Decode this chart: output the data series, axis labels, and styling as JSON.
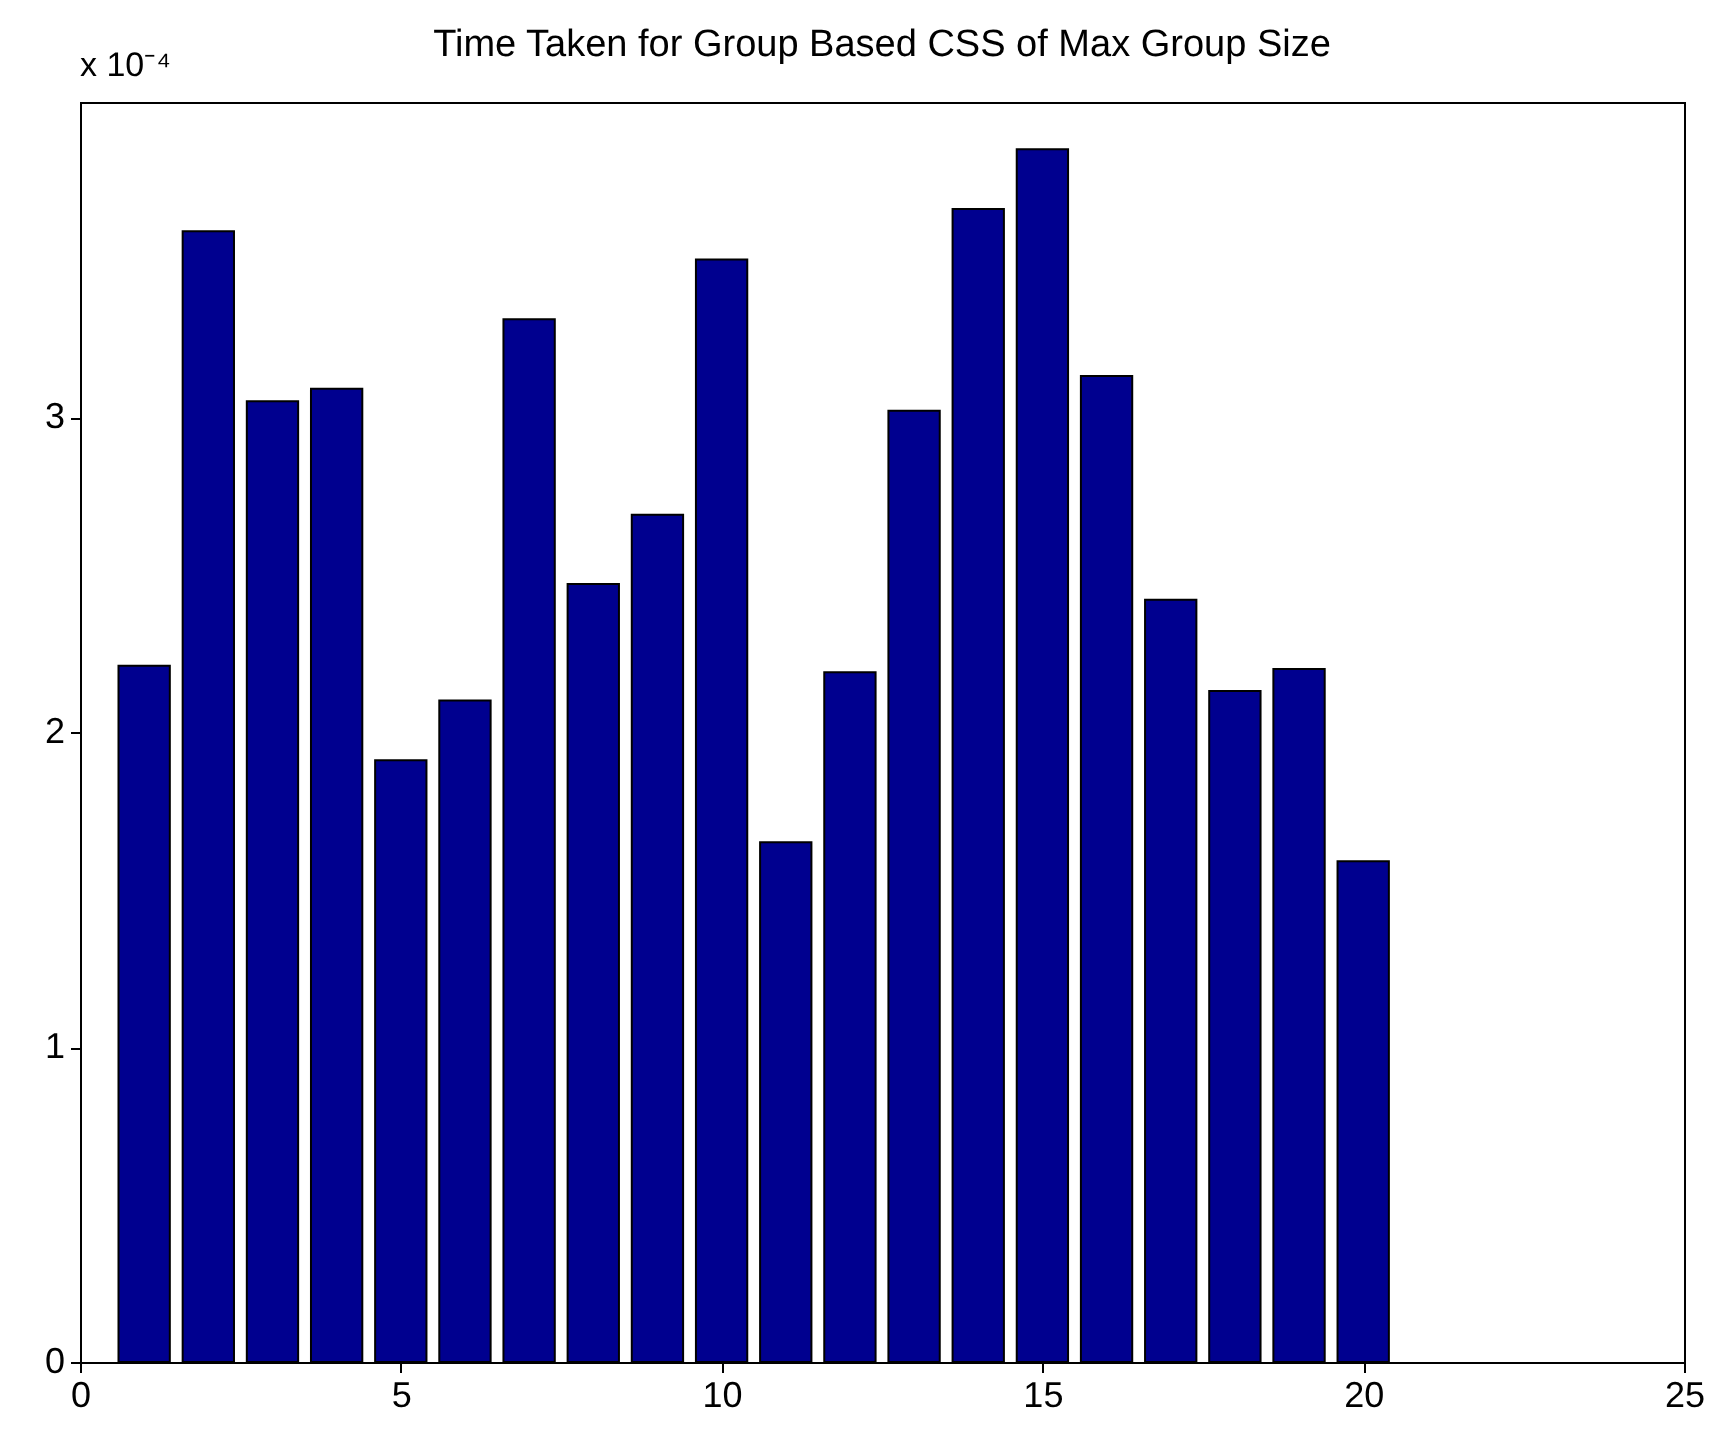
{
  "chart_data": {
    "type": "bar",
    "title": "Time Taken for Group Based CSS of Max Group Size",
    "annotations": [
      "x 10⁻⁴"
    ],
    "x": [
      1,
      2,
      3,
      4,
      5,
      6,
      7,
      8,
      9,
      10,
      11,
      12,
      13,
      14,
      15,
      16,
      17,
      18,
      19,
      20
    ],
    "values": [
      2.21,
      3.59,
      3.05,
      3.09,
      1.91,
      2.1,
      3.31,
      2.47,
      2.69,
      3.5,
      1.65,
      2.19,
      3.02,
      3.66,
      3.85,
      3.13,
      2.42,
      2.13,
      2.2,
      1.59
    ],
    "color": "#00008f",
    "xlim": [
      0,
      25
    ],
    "xticks": [
      0,
      5,
      10,
      15,
      20,
      25
    ],
    "ylim": [
      0,
      4
    ],
    "yticks": [
      0,
      1,
      2,
      3
    ],
    "grid": false
  }
}
